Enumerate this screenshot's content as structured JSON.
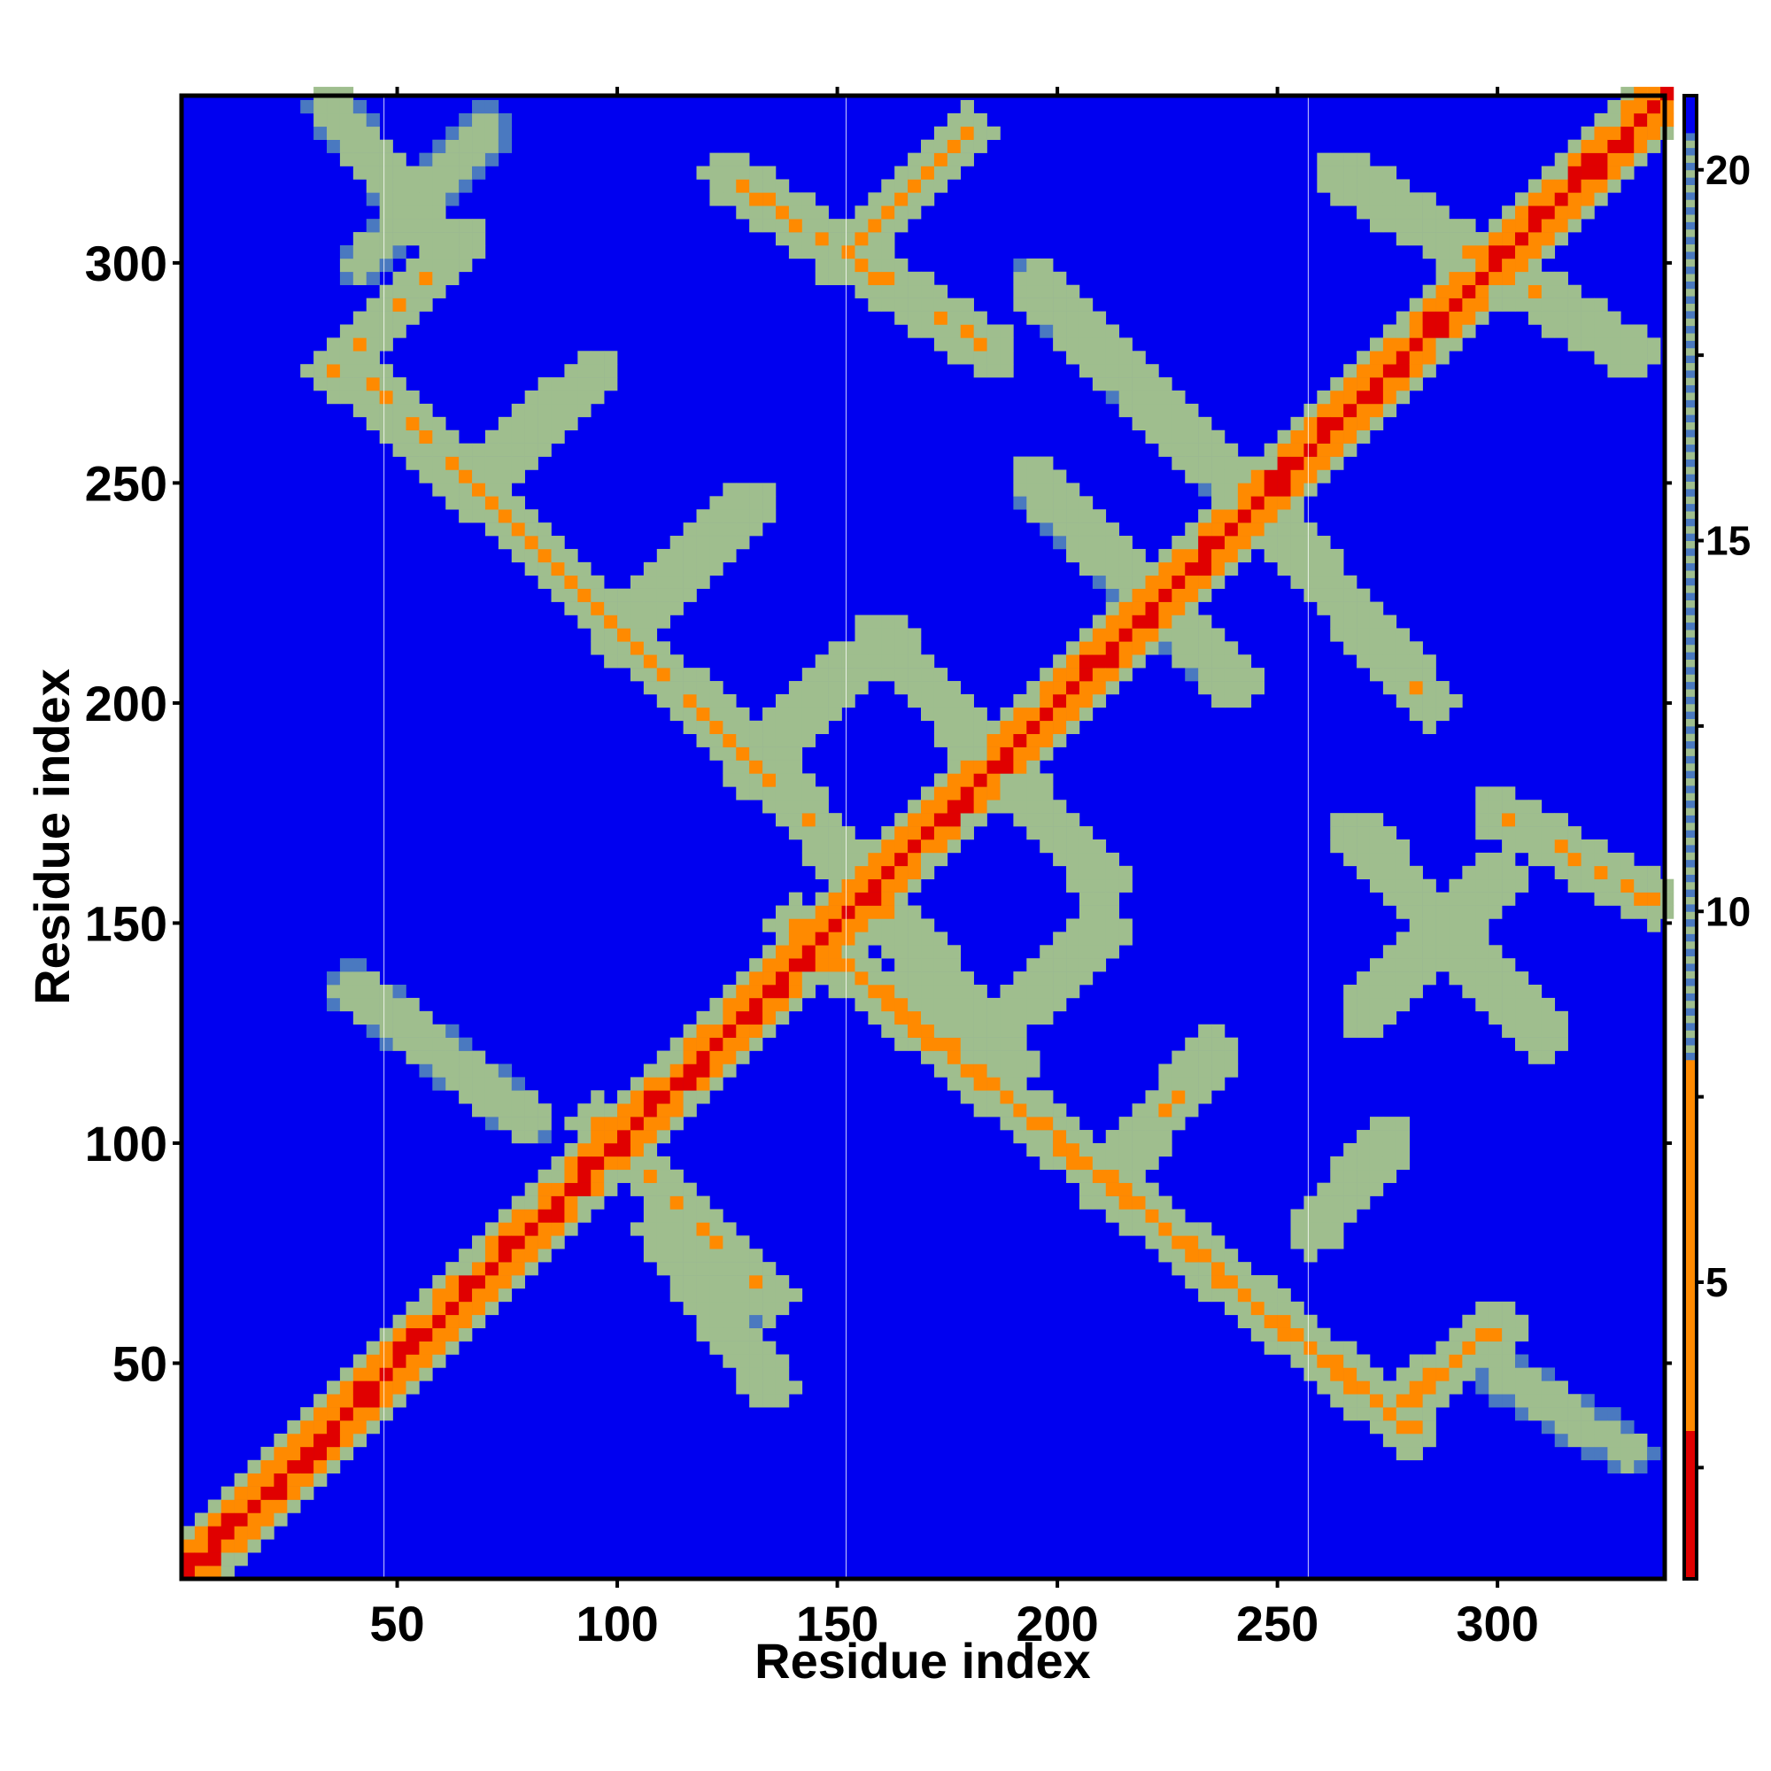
{
  "chart_data": {
    "type": "heatmap",
    "title": "",
    "xlabel": "Residue index",
    "ylabel": "Residue index",
    "xlim": [
      1,
      338
    ],
    "ylim": [
      1,
      338
    ],
    "x_ticks": [
      50,
      100,
      150,
      200,
      250,
      300
    ],
    "y_ticks": [
      50,
      100,
      150,
      200,
      250,
      300
    ],
    "x_tick_labels": [
      "50",
      "100",
      "150",
      "200",
      "250",
      "300"
    ],
    "y_tick_labels": [
      "50",
      "100",
      "150",
      "200",
      "250",
      "300"
    ],
    "grid": false,
    "domain_boundaries_x": [
      47,
      152,
      257
    ],
    "colorbar": {
      "range": [
        1,
        21
      ],
      "ticks": [
        5,
        10,
        15,
        20
      ],
      "tick_labels": [
        "5",
        "10",
        "15",
        "20"
      ],
      "colors": {
        "near": "#e00000",
        "close": "#ff8a00",
        "mid": "#9fbe8e",
        "far": "#4a79c0",
        "background": "#0000f0"
      }
    },
    "features": [
      {
        "kind": "diagonal",
        "from": [
          1,
          1
        ],
        "to": [
          338,
          338
        ],
        "value": 2
      },
      {
        "kind": "antiparallel",
        "from": [
          95,
          105
        ],
        "to": [
          135,
          65
        ],
        "value": 7
      },
      {
        "kind": "antiparallel",
        "from": [
          110,
          80
        ],
        "to": [
          135,
          45
        ],
        "value": 8
      },
      {
        "kind": "antiparallel",
        "from": [
          40,
          135
        ],
        "to": [
          80,
          105
        ],
        "value": 9
      },
      {
        "kind": "antiparallel",
        "from": [
          35,
          335
        ],
        "to": [
          60,
          305
        ],
        "value": 9
      },
      {
        "kind": "parallel",
        "from": [
          42,
          300
        ],
        "to": [
          70,
          330
        ],
        "value": 10
      },
      {
        "kind": "parallel",
        "from": [
          35,
          275
        ],
        "to": [
          65,
          305
        ],
        "value": 7
      },
      {
        "kind": "antiparallel",
        "from": [
          38,
          278
        ],
        "to": [
          140,
          178
        ],
        "value": 6
      },
      {
        "kind": "antiparallel",
        "from": [
          140,
          178
        ],
        "to": [
          190,
          118
        ],
        "value": 7
      },
      {
        "kind": "parallel",
        "from": [
          65,
          248
        ],
        "to": [
          95,
          275
        ],
        "value": 7
      },
      {
        "kind": "parallel",
        "from": [
          100,
          215
        ],
        "to": [
          130,
          245
        ],
        "value": 7
      },
      {
        "kind": "parallel",
        "from": [
          130,
          185
        ],
        "to": [
          155,
          210
        ],
        "value": 7
      },
      {
        "kind": "antiparallel",
        "from": [
          125,
          320
        ],
        "to": [
          185,
          280
        ],
        "value": 6
      },
      {
        "kind": "parallel",
        "from": [
          150,
          300
        ],
        "to": [
          180,
          330
        ],
        "value": 6
      },
      {
        "kind": "antiparallel",
        "from": [
          195,
          295
        ],
        "to": [
          245,
          245
        ],
        "value": 8
      },
      {
        "kind": "antiparallel",
        "from": [
          160,
          215
        ],
        "to": [
          210,
          160
        ],
        "value": 7
      },
      {
        "kind": "antiparallel",
        "from": [
          195,
          250
        ],
        "to": [
          240,
          205
        ],
        "value": 8
      },
      {
        "kind": "antiparallel",
        "from": [
          250,
          240
        ],
        "to": [
          285,
          200
        ],
        "value": 7
      },
      {
        "kind": "antiparallel",
        "from": [
          265,
          320
        ],
        "to": [
          330,
          280
        ],
        "value": 7
      },
      {
        "kind": "antiparallel",
        "from": [
          140,
          150
        ],
        "to": [
          280,
          35
        ],
        "value": 5
      },
      {
        "kind": "parallel",
        "from": [
          185,
          125
        ],
        "to": [
          210,
          148
        ],
        "value": 7
      },
      {
        "kind": "parallel",
        "from": [
          210,
          90
        ],
        "to": [
          235,
          120
        ],
        "value": 7
      },
      {
        "kind": "parallel",
        "from": [
          258,
          80
        ],
        "to": [
          275,
          100
        ],
        "value": 7
      },
      {
        "kind": "parallel",
        "from": [
          275,
          38
        ],
        "to": [
          300,
          58
        ],
        "value": 5
      },
      {
        "kind": "antiparallel",
        "from": [
          300,
          48
        ],
        "to": [
          330,
          30
        ],
        "value": 10
      },
      {
        "kind": "antiparallel",
        "from": [
          268,
          170
        ],
        "to": [
          310,
          125
        ],
        "value": 7
      },
      {
        "kind": "parallel",
        "from": [
          270,
          130
        ],
        "to": [
          300,
          160
        ],
        "value": 7
      },
      {
        "kind": "antiparallel",
        "from": [
          300,
          175
        ],
        "to": [
          335,
          155
        ],
        "value": 6
      }
    ]
  }
}
